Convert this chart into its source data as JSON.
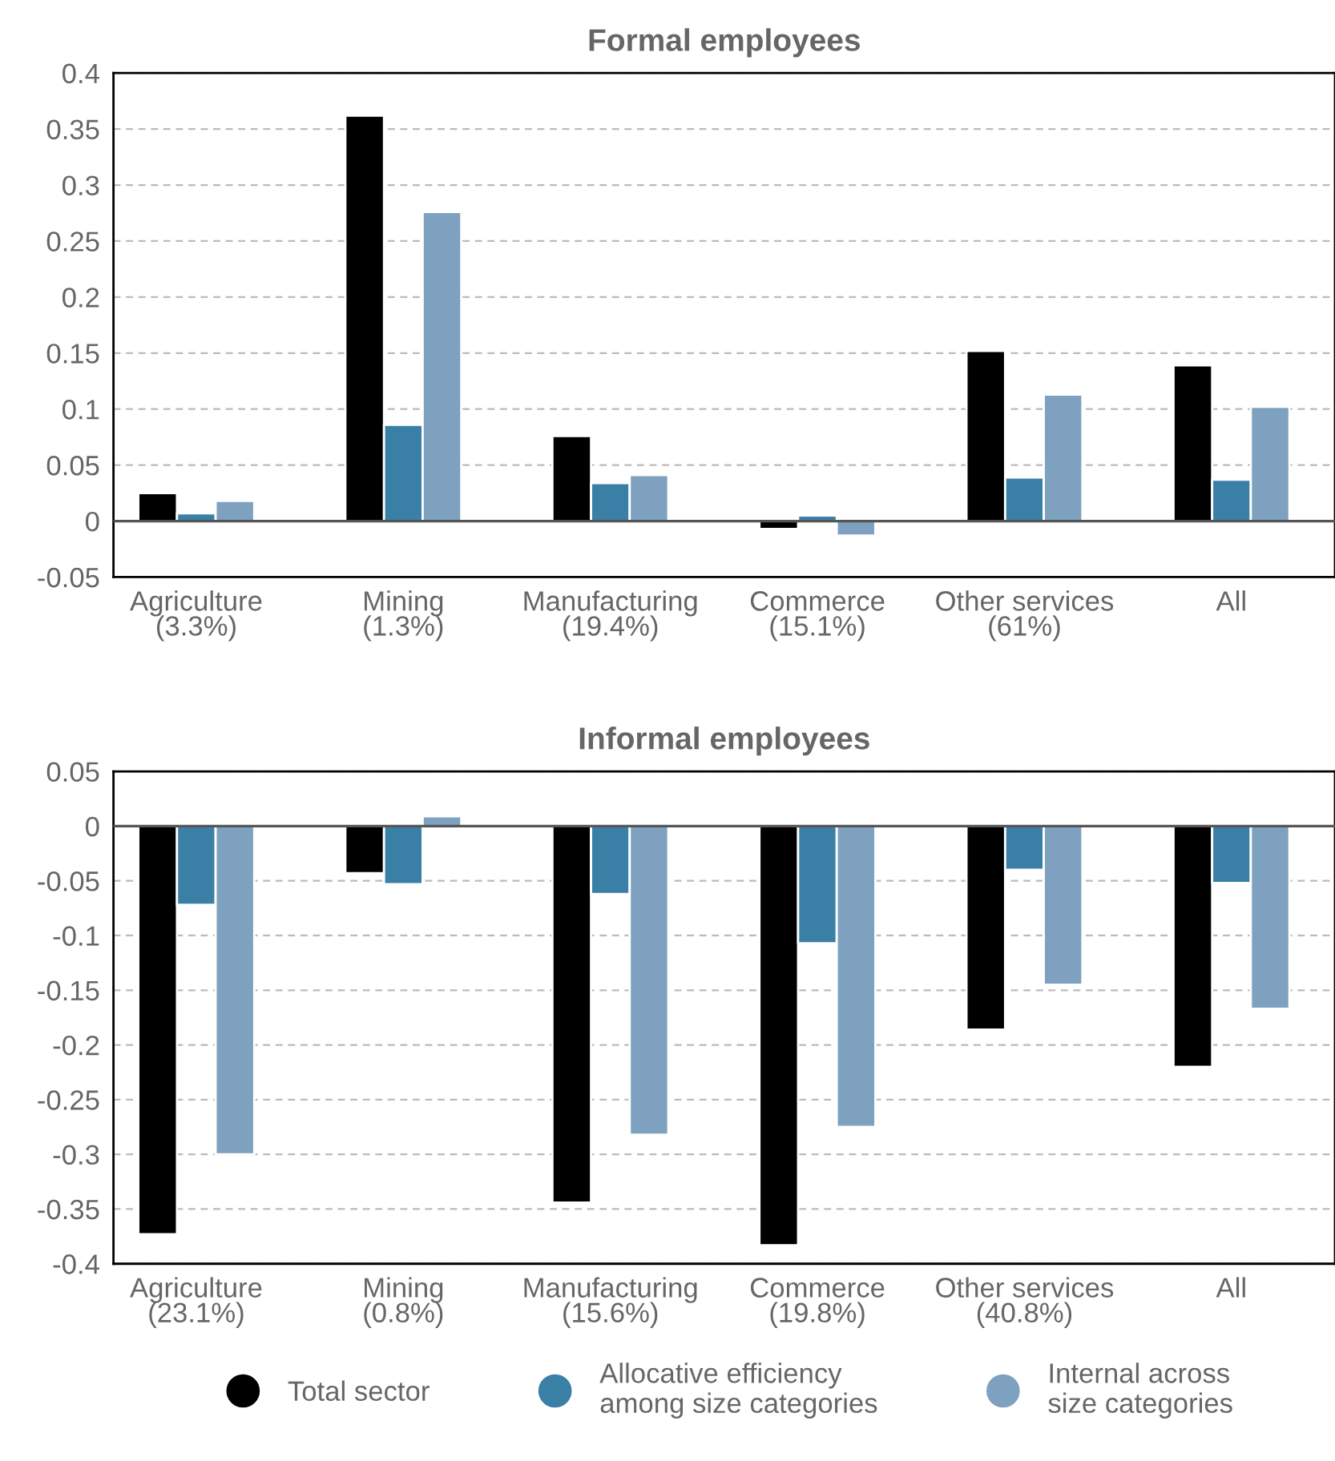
{
  "chart_data": [
    {
      "type": "bar",
      "title": "Formal employees",
      "categories": [
        "Agriculture\n(3.3%)",
        "Mining\n(1.3%)",
        "Manufacturing\n(19.4%)",
        "Commerce\n(15.1%)",
        "Other services\n(61%)",
        "All"
      ],
      "series": [
        {
          "color": "#000000",
          "values": [
            0.025,
            0.362,
            0.076,
            -0.007,
            0.152,
            0.139
          ]
        },
        {
          "color": "#3a80a6",
          "values": [
            0.007,
            0.086,
            0.034,
            0.005,
            0.039,
            0.037
          ]
        },
        {
          "color": "#7ea1bf",
          "values": [
            0.018,
            0.276,
            0.041,
            -0.013,
            0.113,
            0.102
          ]
        }
      ],
      "ylim": [
        -0.05,
        0.4
      ],
      "yticks": [
        -0.05,
        0,
        0.05,
        0.1,
        0.15,
        0.2,
        0.25,
        0.3,
        0.35,
        0.4
      ],
      "grid": "y",
      "ref_lines": [
        {
          "axis": "y",
          "value": 0,
          "color": "#555555"
        }
      ]
    },
    {
      "type": "bar",
      "title": "Informal employees",
      "categories": [
        "Agriculture\n(23.1%)",
        "Mining\n(0.8%)",
        "Manufacturing\n(15.6%)",
        "Commerce\n(19.8%)",
        "Other services\n(40.8%)",
        "All"
      ],
      "series": [
        {
          "name": "Total sector",
          "color": "#000000",
          "values": [
            -0.373,
            -0.043,
            -0.344,
            -0.383,
            -0.186,
            -0.22
          ]
        },
        {
          "name": "Allocative efficiency\namong size categories",
          "color": "#3a80a6",
          "values": [
            -0.072,
            -0.053,
            -0.062,
            -0.107,
            -0.04,
            -0.052
          ]
        },
        {
          "name": "Internal across\nsize categories",
          "color": "#7ea1bf",
          "values": [
            -0.3,
            0.009,
            -0.282,
            -0.275,
            -0.145,
            -0.167
          ]
        }
      ],
      "ylim": [
        -0.4,
        0.05
      ],
      "yticks": [
        -0.4,
        -0.35,
        -0.3,
        -0.25,
        -0.2,
        -0.15,
        -0.1,
        -0.05,
        0,
        0.05
      ],
      "grid": "y",
      "legend": "bottom",
      "marker": "circle",
      "ref_lines": [
        {
          "axis": "y",
          "value": 0,
          "color": "#555555"
        }
      ]
    }
  ]
}
